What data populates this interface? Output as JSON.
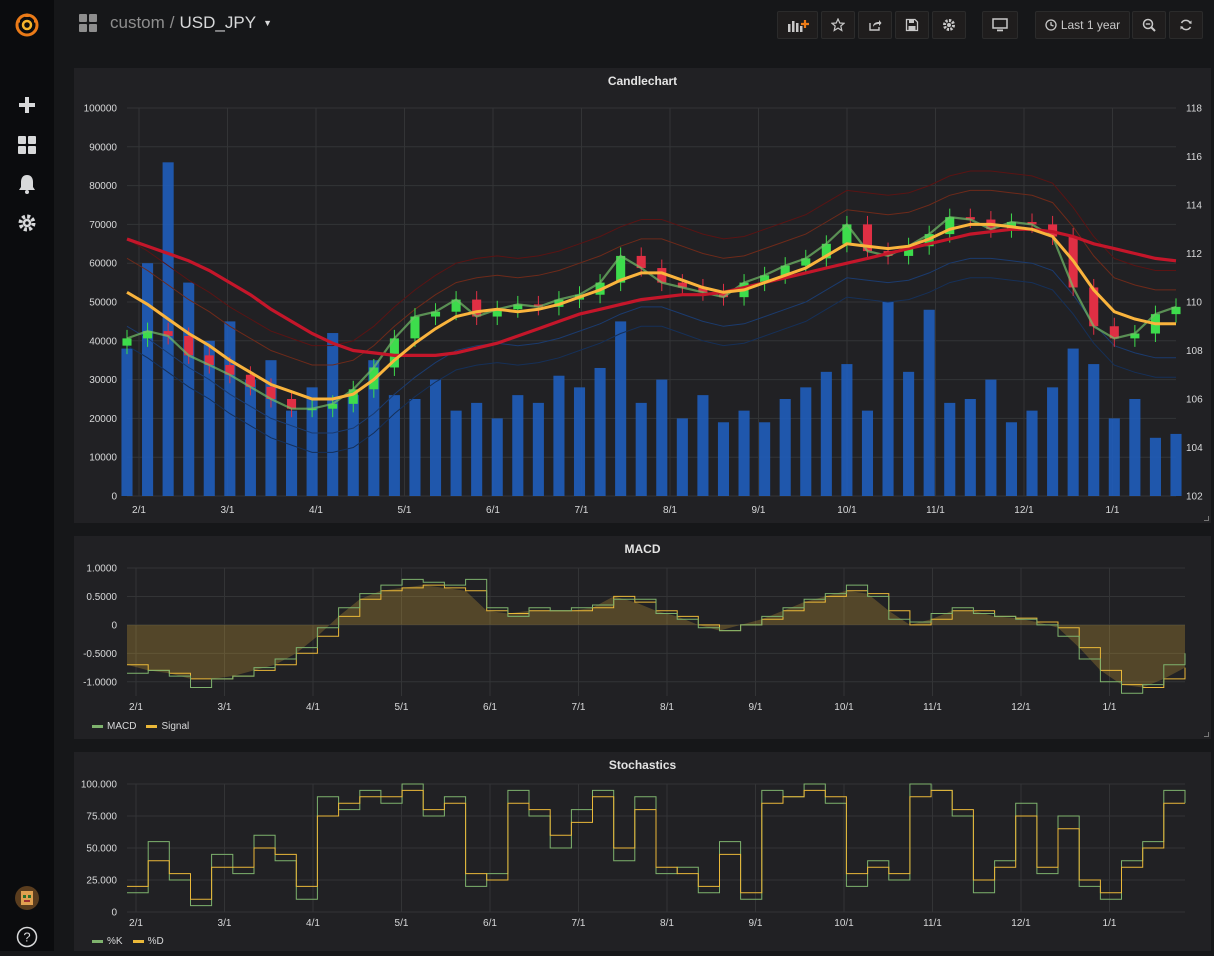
{
  "sidemenu": {
    "items": [
      {
        "name": "grafana-logo-icon"
      },
      {
        "name": "create-icon"
      },
      {
        "name": "dashboards-icon"
      },
      {
        "name": "alerting-icon"
      },
      {
        "name": "configuration-icon"
      }
    ],
    "bottom": [
      {
        "name": "user-avatar"
      },
      {
        "name": "help-icon"
      }
    ],
    "accent_color": "#eb7b18"
  },
  "topbar": {
    "folder": "custom",
    "separator": "/",
    "dashboard": "USD_JPY",
    "time_range": "Last 1 year",
    "buttons": [
      "add-panel-button",
      "star-button",
      "share-button",
      "save-button",
      "settings-button",
      "cycle-view-button",
      "time-picker-button",
      "zoom-out-button",
      "refresh-button"
    ]
  },
  "panels": {
    "candle": {
      "title": "Candlechart"
    },
    "macd": {
      "title": "MACD"
    },
    "stoch": {
      "title": "Stochastics"
    }
  },
  "chart_data": [
    {
      "type": "candlestick",
      "title": "Candlechart",
      "x_ticks": [
        "2/1",
        "3/1",
        "4/1",
        "5/1",
        "6/1",
        "7/1",
        "8/1",
        "9/1",
        "10/1",
        "11/1",
        "12/1",
        "1/1"
      ],
      "y_left_ticks": [
        "0",
        "10000",
        "20000",
        "30000",
        "40000",
        "50000",
        "60000",
        "70000",
        "80000",
        "90000",
        "100000"
      ],
      "y_right_ticks": [
        "102",
        "104",
        "106",
        "108",
        "110",
        "112",
        "114",
        "116",
        "118"
      ],
      "ylim_left": [
        0,
        100000
      ],
      "ylim_right": [
        102,
        118
      ],
      "price_close": [
        108.5,
        108.8,
        108.6,
        107.8,
        107.4,
        107.0,
        106.5,
        106.0,
        105.6,
        105.6,
        105.8,
        106.4,
        107.3,
        108.5,
        109.4,
        109.6,
        110.1,
        109.4,
        109.7,
        109.9,
        109.8,
        110.1,
        110.3,
        110.8,
        111.9,
        111.4,
        110.8,
        110.6,
        110.4,
        110.2,
        110.8,
        111.1,
        111.5,
        111.8,
        112.4,
        113.2,
        112.1,
        111.9,
        112.3,
        112.8,
        113.5,
        113.4,
        113.0,
        113.3,
        113.2,
        112.7,
        110.6,
        109.0,
        108.5,
        108.7,
        109.5,
        109.8
      ],
      "ma_short": [
        110.4,
        109.9,
        109.3,
        108.7,
        108.2,
        107.6,
        107.1,
        106.6,
        106.3,
        106.0,
        106.0,
        106.2,
        106.8,
        107.6,
        108.3,
        108.9,
        109.4,
        109.6,
        109.7,
        109.6,
        109.7,
        109.9,
        110.2,
        110.5,
        110.9,
        111.2,
        111.2,
        110.9,
        110.6,
        110.4,
        110.5,
        110.8,
        111.1,
        111.4,
        111.9,
        112.4,
        112.3,
        112.2,
        112.3,
        112.6,
        113.0,
        113.2,
        113.2,
        113.1,
        113.0,
        112.7,
        111.7,
        110.5,
        109.6,
        109.3,
        109.1,
        109.1
      ],
      "ma_long": [
        112.6,
        112.3,
        112.0,
        111.7,
        111.3,
        110.8,
        110.3,
        109.7,
        109.2,
        108.7,
        108.3,
        108.0,
        107.9,
        107.8,
        107.8,
        107.8,
        107.9,
        108.1,
        108.3,
        108.6,
        108.9,
        109.2,
        109.5,
        109.7,
        109.9,
        110.1,
        110.2,
        110.3,
        110.3,
        110.4,
        110.6,
        110.8,
        111.0,
        111.2,
        111.4,
        111.6,
        111.8,
        112.0,
        112.2,
        112.4,
        112.6,
        112.8,
        112.9,
        113.0,
        113.0,
        112.9,
        112.7,
        112.4,
        112.2,
        112.0,
        111.8,
        111.7
      ],
      "volume": [
        38000,
        60000,
        86000,
        55000,
        40000,
        45000,
        30000,
        35000,
        22000,
        28000,
        42000,
        26000,
        35000,
        26000,
        25000,
        30000,
        22000,
        24000,
        20000,
        26000,
        24000,
        31000,
        28000,
        33000,
        45000,
        24000,
        30000,
        20000,
        26000,
        19000,
        22000,
        19000,
        25000,
        28000,
        32000,
        34000,
        22000,
        50000,
        32000,
        48000,
        24000,
        25000,
        30000,
        19000,
        22000,
        28000,
        38000,
        34000,
        20000,
        25000,
        15000,
        16000
      ]
    },
    {
      "type": "line",
      "title": "MACD",
      "x_ticks": [
        "2/1",
        "3/1",
        "4/1",
        "5/1",
        "6/1",
        "7/1",
        "8/1",
        "9/1",
        "10/1",
        "11/1",
        "12/1",
        "1/1"
      ],
      "y_ticks": [
        "1.0000",
        "0.5000",
        "0",
        "-0.5000",
        "-1.0000"
      ],
      "ylim": [
        -1.25,
        1.0
      ],
      "legend": "bottom-left",
      "series": [
        {
          "name": "MACD",
          "color": "#7eb26d",
          "values": [
            -0.85,
            -0.8,
            -0.9,
            -1.1,
            -0.95,
            -0.9,
            -0.75,
            -0.6,
            -0.4,
            -0.05,
            0.3,
            0.55,
            0.7,
            0.8,
            0.75,
            0.7,
            0.8,
            0.3,
            0.15,
            0.3,
            0.25,
            0.3,
            0.35,
            0.45,
            0.45,
            0.2,
            0.1,
            -0.05,
            -0.1,
            0.0,
            0.15,
            0.3,
            0.45,
            0.55,
            0.7,
            0.5,
            0.1,
            0.05,
            0.2,
            0.3,
            0.2,
            0.15,
            0.1,
            0.0,
            -0.2,
            -0.6,
            -1.0,
            -1.2,
            -1.05,
            -0.7,
            -0.5
          ]
        },
        {
          "name": "Signal",
          "color": "#eab839",
          "values": [
            -0.7,
            -0.8,
            -0.85,
            -0.95,
            -0.95,
            -0.9,
            -0.8,
            -0.7,
            -0.5,
            -0.2,
            0.15,
            0.45,
            0.6,
            0.65,
            0.7,
            0.65,
            0.6,
            0.25,
            0.2,
            0.25,
            0.25,
            0.25,
            0.3,
            0.5,
            0.4,
            0.25,
            0.15,
            0.0,
            -0.1,
            0.0,
            0.1,
            0.25,
            0.4,
            0.5,
            0.6,
            0.55,
            0.25,
            0.0,
            0.1,
            0.25,
            0.25,
            0.15,
            0.12,
            0.05,
            -0.05,
            -0.4,
            -0.8,
            -1.05,
            -1.1,
            -0.95,
            -0.75
          ]
        }
      ]
    },
    {
      "type": "line",
      "title": "Stochastics",
      "x_ticks": [
        "2/1",
        "3/1",
        "4/1",
        "5/1",
        "6/1",
        "7/1",
        "8/1",
        "9/1",
        "10/1",
        "11/1",
        "12/1",
        "1/1"
      ],
      "y_ticks": [
        "100.000",
        "75.000",
        "50.000",
        "25.000",
        "0"
      ],
      "ylim": [
        0,
        100
      ],
      "legend": "bottom-left",
      "series": [
        {
          "name": "%K",
          "color": "#7eb26d",
          "values": [
            15,
            55,
            25,
            5,
            45,
            30,
            60,
            40,
            10,
            90,
            80,
            95,
            85,
            100,
            75,
            90,
            20,
            30,
            95,
            75,
            50,
            80,
            95,
            40,
            90,
            30,
            35,
            15,
            55,
            10,
            95,
            90,
            100,
            85,
            20,
            40,
            25,
            100,
            95,
            75,
            15,
            40,
            85,
            30,
            75,
            20,
            10,
            40,
            55,
            95,
            85
          ]
        },
        {
          "name": "%D",
          "color": "#eab839",
          "values": [
            20,
            40,
            30,
            10,
            35,
            35,
            50,
            45,
            20,
            75,
            85,
            90,
            90,
            95,
            80,
            85,
            30,
            25,
            85,
            80,
            60,
            70,
            90,
            50,
            80,
            35,
            30,
            20,
            45,
            15,
            85,
            90,
            95,
            90,
            30,
            35,
            30,
            90,
            95,
            80,
            25,
            35,
            75,
            35,
            65,
            25,
            15,
            35,
            50,
            85,
            85
          ]
        }
      ]
    }
  ]
}
